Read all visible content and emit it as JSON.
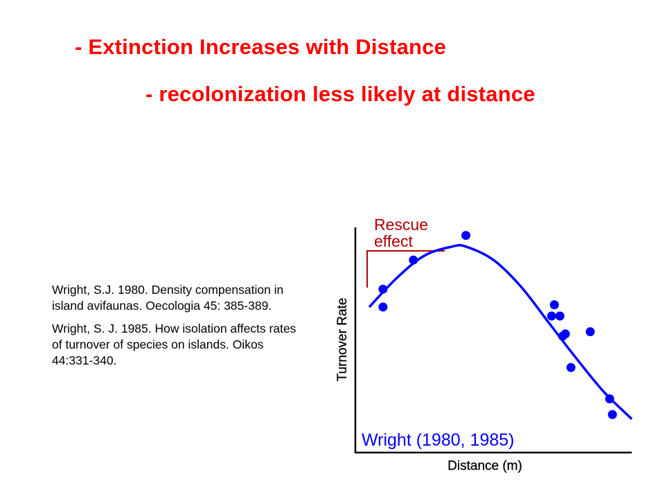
{
  "slide": {
    "headline_1": "- Extinction Increases with Distance",
    "headline_2": "- recolonization less likely at distance",
    "accent_color": "#ff0000"
  },
  "references": [
    "Wright, S.J. 1980. Density compensation in island avifaunas. Oecologia 45: 385-389.",
    "Wright, S. J. 1985. How isolation affects rates of turnover of species on islands. Oikos 44:331-340."
  ],
  "chart_data": {
    "type": "scatter",
    "title": "",
    "xlabel": "Distance (m)",
    "ylabel": "Turnover Rate",
    "xlim": [
      0,
      100
    ],
    "ylim": [
      0,
      100
    ],
    "grid": false,
    "axis_ticks": false,
    "annotations": [
      {
        "text_lines": [
          "Rescue",
          "effect"
        ],
        "color": "#b00000",
        "placement": "top-left"
      },
      {
        "text": "Wright (1980, 1985)",
        "color": "#0000ff",
        "placement": "bottom-left"
      }
    ],
    "series": [
      {
        "kind": "points",
        "color": "#0000ff",
        "x": [
          10,
          10,
          21,
          40,
          72,
          71,
          74,
          76,
          75,
          85,
          78,
          92,
          93
        ],
        "y": [
          73,
          65,
          86,
          97,
          66,
          61,
          61,
          53,
          52,
          54,
          38,
          24,
          17
        ]
      },
      {
        "kind": "fitted-curve",
        "color": "#0000ff",
        "x": [
          5,
          15,
          25,
          35,
          40,
          50,
          60,
          70,
          80,
          90,
          100
        ],
        "y": [
          65,
          78,
          88,
          92,
          92,
          86,
          74,
          58,
          42,
          27,
          15
        ]
      }
    ]
  }
}
